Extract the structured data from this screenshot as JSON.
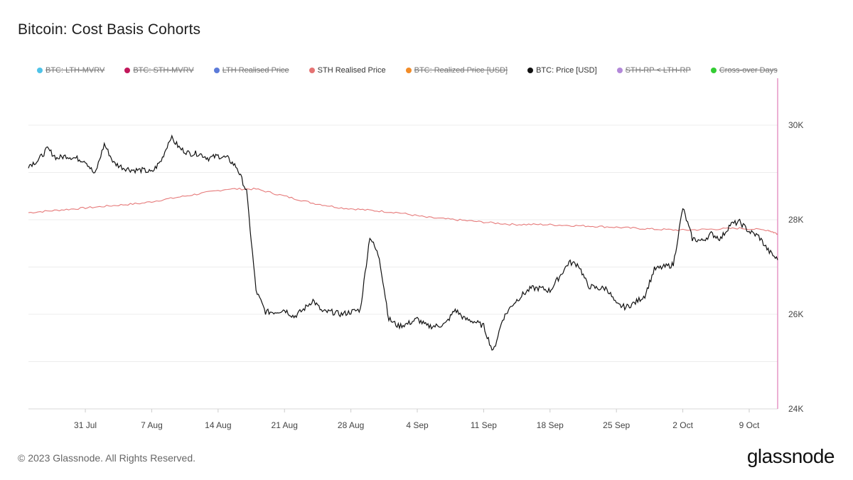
{
  "title": "Bitcoin: Cost Basis Cohorts",
  "footer": "© 2023 Glassnode. All Rights Reserved.",
  "logo": "glassnode",
  "legend": [
    {
      "label": "BTC: LTH-MVRV",
      "color": "#4fc3e8",
      "active": false
    },
    {
      "label": "BTC: STH-MVRV",
      "color": "#c2185b",
      "active": false
    },
    {
      "label": "LTH Realised Price",
      "color": "#5c7bd9",
      "active": false
    },
    {
      "label": "STH Realised Price",
      "color": "#e57373",
      "active": true
    },
    {
      "label": "BTC: Realized Price [USD]",
      "color": "#f28c28",
      "active": false
    },
    {
      "label": "BTC: Price [USD]",
      "color": "#111111",
      "active": true
    },
    {
      "label": "STH-RP < LTH-RP",
      "color": "#b388d9",
      "active": false
    },
    {
      "label": "Cross-over Days",
      "color": "#33cc33",
      "active": false
    }
  ],
  "chart_data": {
    "type": "line",
    "x_ticks": [
      "31 Jul",
      "7 Aug",
      "14 Aug",
      "21 Aug",
      "28 Aug",
      "4 Sep",
      "11 Sep",
      "18 Sep",
      "25 Sep",
      "2 Oct",
      "9 Oct"
    ],
    "x_range": [
      "2023-07-25",
      "2023-10-12"
    ],
    "y_ticks": [
      "24K",
      "26K",
      "28K",
      "30K"
    ],
    "ylim": [
      24000,
      30000
    ],
    "grid": true,
    "series": [
      {
        "name": "BTC: Price [USD]",
        "color": "#111111",
        "points": [
          [
            "2023-07-25",
            29150
          ],
          [
            "2023-07-26",
            29250
          ],
          [
            "2023-07-27",
            29500
          ],
          [
            "2023-07-28",
            29300
          ],
          [
            "2023-07-29",
            29350
          ],
          [
            "2023-07-30",
            29300
          ],
          [
            "2023-07-31",
            29250
          ],
          [
            "2023-08-01",
            28950
          ],
          [
            "2023-08-02",
            29600
          ],
          [
            "2023-08-03",
            29200
          ],
          [
            "2023-08-04",
            29100
          ],
          [
            "2023-08-05",
            29050
          ],
          [
            "2023-08-06",
            29050
          ],
          [
            "2023-08-07",
            29000
          ],
          [
            "2023-08-08",
            29250
          ],
          [
            "2023-08-09",
            29750
          ],
          [
            "2023-08-10",
            29500
          ],
          [
            "2023-08-11",
            29400
          ],
          [
            "2023-08-12",
            29400
          ],
          [
            "2023-08-13",
            29300
          ],
          [
            "2023-08-14",
            29350
          ],
          [
            "2023-08-15",
            29300
          ],
          [
            "2023-08-16",
            29100
          ],
          [
            "2023-08-17",
            28600
          ],
          [
            "2023-08-18",
            26500
          ],
          [
            "2023-08-19",
            26050
          ],
          [
            "2023-08-20",
            26050
          ],
          [
            "2023-08-21",
            26100
          ],
          [
            "2023-08-22",
            25950
          ],
          [
            "2023-08-23",
            26100
          ],
          [
            "2023-08-24",
            26300
          ],
          [
            "2023-08-25",
            26050
          ],
          [
            "2023-08-26",
            26050
          ],
          [
            "2023-08-27",
            26000
          ],
          [
            "2023-08-28",
            26050
          ],
          [
            "2023-08-29",
            26100
          ],
          [
            "2023-08-30",
            27650
          ],
          [
            "2023-08-31",
            27200
          ],
          [
            "2023-09-01",
            25900
          ],
          [
            "2023-09-02",
            25750
          ],
          [
            "2023-09-03",
            25800
          ],
          [
            "2023-09-04",
            25900
          ],
          [
            "2023-09-05",
            25750
          ],
          [
            "2023-09-06",
            25750
          ],
          [
            "2023-09-07",
            25800
          ],
          [
            "2023-09-08",
            26100
          ],
          [
            "2023-09-09",
            25900
          ],
          [
            "2023-09-10",
            25850
          ],
          [
            "2023-09-11",
            25750
          ],
          [
            "2023-09-12",
            25200
          ],
          [
            "2023-09-13",
            25900
          ],
          [
            "2023-09-14",
            26200
          ],
          [
            "2023-09-15",
            26400
          ],
          [
            "2023-09-16",
            26550
          ],
          [
            "2023-09-17",
            26550
          ],
          [
            "2023-09-18",
            26500
          ],
          [
            "2023-09-19",
            26800
          ],
          [
            "2023-09-20",
            27100
          ],
          [
            "2023-09-21",
            27050
          ],
          [
            "2023-09-22",
            26600
          ],
          [
            "2023-09-23",
            26550
          ],
          [
            "2023-09-24",
            26550
          ],
          [
            "2023-09-25",
            26200
          ],
          [
            "2023-09-26",
            26150
          ],
          [
            "2023-09-27",
            26250
          ],
          [
            "2023-09-28",
            26400
          ],
          [
            "2023-09-29",
            26950
          ],
          [
            "2023-09-30",
            27000
          ],
          [
            "2023-10-01",
            27050
          ],
          [
            "2023-10-02",
            28250
          ],
          [
            "2023-10-03",
            27600
          ],
          [
            "2023-10-04",
            27550
          ],
          [
            "2023-10-05",
            27700
          ],
          [
            "2023-10-06",
            27600
          ],
          [
            "2023-10-07",
            27900
          ],
          [
            "2023-10-08",
            27950
          ],
          [
            "2023-10-09",
            27750
          ],
          [
            "2023-10-10",
            27650
          ],
          [
            "2023-10-11",
            27350
          ],
          [
            "2023-10-12",
            27150
          ]
        ]
      },
      {
        "name": "STH Realised Price",
        "color": "#e57373",
        "points": [
          [
            "2023-07-25",
            28150
          ],
          [
            "2023-07-28",
            28200
          ],
          [
            "2023-07-31",
            28250
          ],
          [
            "2023-08-03",
            28300
          ],
          [
            "2023-08-06",
            28350
          ],
          [
            "2023-08-09",
            28450
          ],
          [
            "2023-08-12",
            28550
          ],
          [
            "2023-08-15",
            28650
          ],
          [
            "2023-08-18",
            28650
          ],
          [
            "2023-08-21",
            28500
          ],
          [
            "2023-08-24",
            28350
          ],
          [
            "2023-08-27",
            28250
          ],
          [
            "2023-08-30",
            28200
          ],
          [
            "2023-09-02",
            28150
          ],
          [
            "2023-09-05",
            28050
          ],
          [
            "2023-09-08",
            28000
          ],
          [
            "2023-09-11",
            27950
          ],
          [
            "2023-09-14",
            27900
          ],
          [
            "2023-09-17",
            27900
          ],
          [
            "2023-09-20",
            27880
          ],
          [
            "2023-09-23",
            27860
          ],
          [
            "2023-09-26",
            27830
          ],
          [
            "2023-09-29",
            27800
          ],
          [
            "2023-10-02",
            27780
          ],
          [
            "2023-10-05",
            27800
          ],
          [
            "2023-10-08",
            27820
          ],
          [
            "2023-10-11",
            27780
          ],
          [
            "2023-10-12",
            27700
          ]
        ]
      }
    ]
  }
}
